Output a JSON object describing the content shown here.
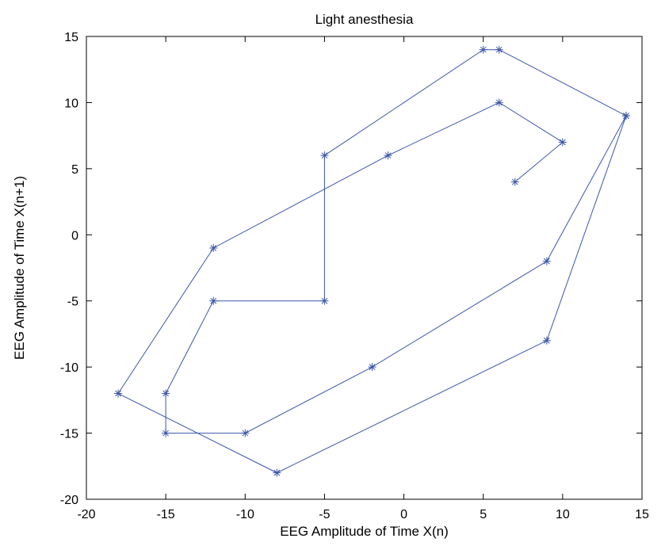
{
  "chart_data": {
    "type": "line",
    "title": "Light anesthesia",
    "xlabel": "EEG Amplitude of Time X(n)",
    "ylabel": "EEG Amplitude of Time X(n+1)",
    "xlim": [
      -20,
      15
    ],
    "ylim": [
      -20,
      15
    ],
    "xticks": [
      -20,
      -15,
      -10,
      -5,
      0,
      5,
      10,
      15
    ],
    "yticks": [
      -20,
      -15,
      -10,
      -5,
      0,
      5,
      10,
      15
    ],
    "grid": false,
    "marker": "asterisk",
    "series_color": "#3b56a8",
    "points": [
      [
        7,
        4
      ],
      [
        10,
        7
      ],
      [
        6,
        10
      ],
      [
        -1,
        6
      ],
      [
        -12,
        -1
      ],
      [
        -18,
        -12
      ],
      [
        -8,
        -18
      ],
      [
        9,
        -8
      ],
      [
        14,
        9
      ],
      [
        6,
        14
      ],
      [
        5,
        14
      ],
      [
        -5,
        6
      ],
      [
        -5,
        -5
      ],
      [
        -12,
        -5
      ],
      [
        -15,
        -12
      ],
      [
        -15,
        -15
      ],
      [
        -10,
        -15
      ],
      [
        -2,
        -10
      ],
      [
        9,
        -2
      ],
      [
        14,
        9
      ]
    ]
  }
}
